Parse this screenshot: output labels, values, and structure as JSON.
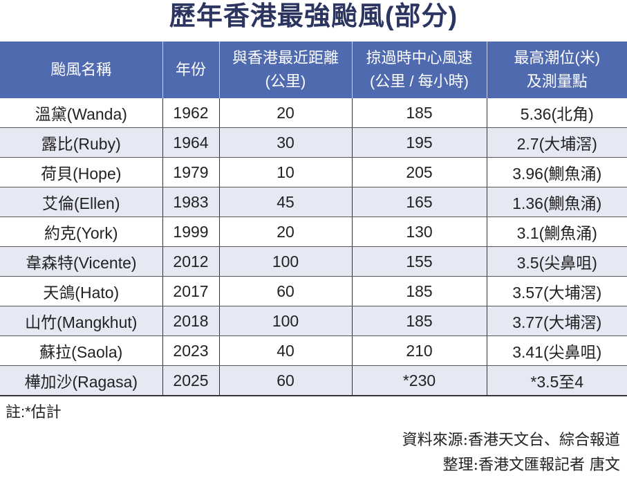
{
  "title": "歷年香港最強颱風(部分)",
  "table": {
    "headers": [
      {
        "line1": "颱風名稱",
        "line2": ""
      },
      {
        "line1": "年份",
        "line2": ""
      },
      {
        "line1": "與香港最近距離",
        "line2": "(公里)"
      },
      {
        "line1": "掠過時中心風速",
        "line2": "(公里 / 每小時)"
      },
      {
        "line1": "最高潮位(米)",
        "line2": "及測量點"
      }
    ],
    "rows": [
      [
        "溫黛(Wanda)",
        "1962",
        "20",
        "185",
        "5.36(北角)"
      ],
      [
        "露比(Ruby)",
        "1964",
        "30",
        "195",
        "2.7(大埔滘)"
      ],
      [
        "荷貝(Hope)",
        "1979",
        "10",
        "205",
        "3.96(鰂魚涌)"
      ],
      [
        "艾倫(Ellen)",
        "1983",
        "45",
        "165",
        "1.36(鰂魚涌)"
      ],
      [
        "約克(York)",
        "1999",
        "20",
        "130",
        "3.1(鰂魚涌)"
      ],
      [
        "韋森特(Vicente)",
        "2012",
        "100",
        "155",
        "3.5(尖鼻咀)"
      ],
      [
        "天鴿(Hato)",
        "2017",
        "60",
        "185",
        "3.57(大埔滘)"
      ],
      [
        "山竹(Mangkhut)",
        "2018",
        "100",
        "185",
        "3.77(大埔滘)"
      ],
      [
        "蘇拉(Saola)",
        "2023",
        "40",
        "210",
        "3.41(尖鼻咀)"
      ],
      [
        "樺加沙(Ragasa)",
        "2025",
        "60",
        "*230",
        "*3.5至4"
      ]
    ]
  },
  "note": "註:*估計",
  "source": "資料來源:香港天文台、綜合報道",
  "credit": "整理:香港文匯報記者 唐文",
  "colors": {
    "header_bg": "#4f6aae",
    "title": "#2b3560",
    "stripe": "#e6e8f4"
  }
}
